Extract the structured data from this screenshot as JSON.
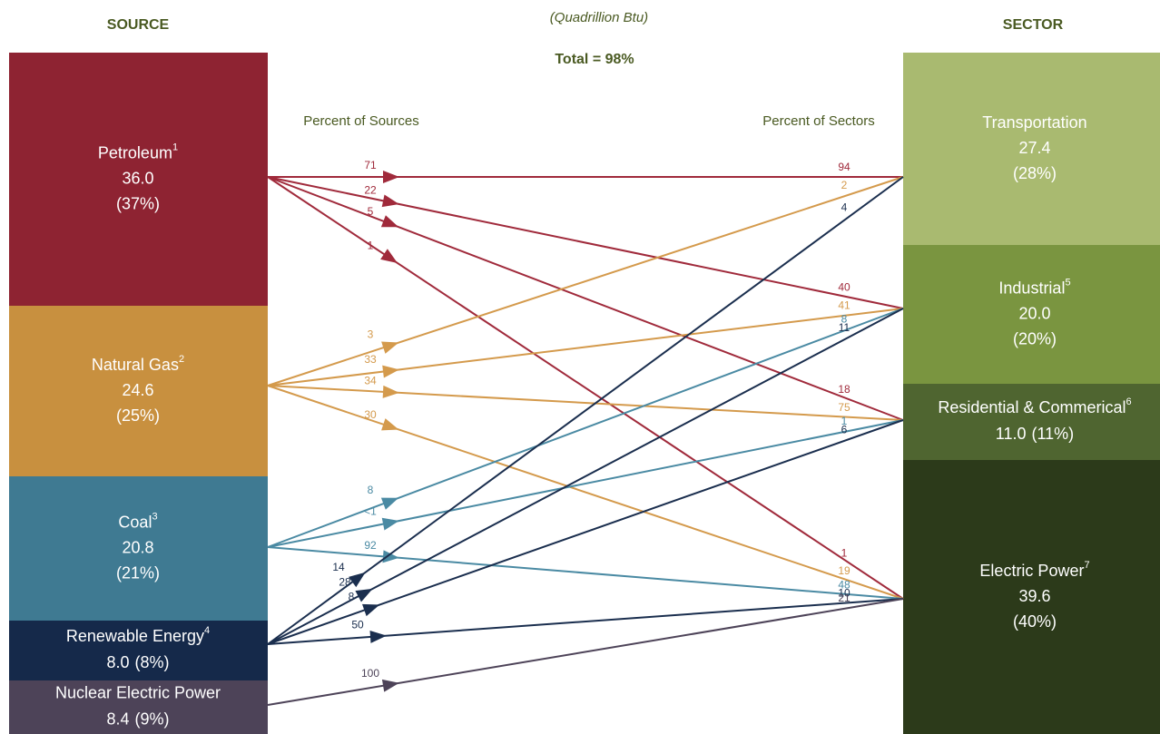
{
  "header": {
    "source_title": "SOURCE",
    "unit": "(Quadrillion Btu)",
    "total": "Total = 98%",
    "sector_title": "SECTOR",
    "percent_sources": "Percent of Sources",
    "percent_sectors": "Percent of Sectors"
  },
  "sources": [
    {
      "name": "Petroleum",
      "sup": "1",
      "value": "36.0",
      "share": "(37%)",
      "flows": [
        {
          "source_pct": "71",
          "sector_pct": "94"
        },
        {
          "source_pct": "22",
          "sector_pct": "40"
        },
        {
          "source_pct": "5",
          "sector_pct": "18"
        },
        {
          "source_pct": "1",
          "sector_pct": "1"
        }
      ]
    },
    {
      "name": "Natural Gas",
      "sup": "2",
      "value": "24.6",
      "share": "(25%)",
      "flows": [
        {
          "source_pct": "3",
          "sector_pct": "2"
        },
        {
          "source_pct": "33",
          "sector_pct": "41"
        },
        {
          "source_pct": "34",
          "sector_pct": "75"
        },
        {
          "source_pct": "30",
          "sector_pct": "19"
        }
      ]
    },
    {
      "name": "Coal",
      "sup": "3",
      "value": "20.8",
      "share": "(21%)",
      "flows": [
        null,
        {
          "source_pct": "8",
          "sector_pct": "8"
        },
        {
          "source_pct": "<1",
          "sector_pct": "1"
        },
        {
          "source_pct": "92",
          "sector_pct": "48"
        }
      ]
    },
    {
      "name": "Renewable Energy",
      "sup": "4",
      "value": "8.0",
      "share": "(8%)",
      "flows": [
        {
          "source_pct": "14",
          "sector_pct": "4"
        },
        {
          "source_pct": "28",
          "sector_pct": "11"
        },
        {
          "source_pct": "8",
          "sector_pct": "6"
        },
        {
          "source_pct": "50",
          "sector_pct": "10"
        }
      ]
    },
    {
      "name": "Nuclear Electric Power",
      "sup": null,
      "value": "8.4",
      "share": "(9%)",
      "flows": [
        null,
        null,
        null,
        {
          "source_pct": "100",
          "sector_pct": "21"
        }
      ]
    }
  ],
  "sectors": [
    {
      "name": "Transportation",
      "sup": null,
      "value": "27.4",
      "share": "(28%)"
    },
    {
      "name": "Industrial",
      "sup": "5",
      "value": "20.0",
      "share": "(20%)"
    },
    {
      "name": "Residential & Commerical",
      "sup": "6",
      "value": "11.0",
      "share": "(11%)"
    },
    {
      "name": "Electric Power",
      "sup": "7",
      "value": "39.6",
      "share": "(40%)"
    }
  ]
}
